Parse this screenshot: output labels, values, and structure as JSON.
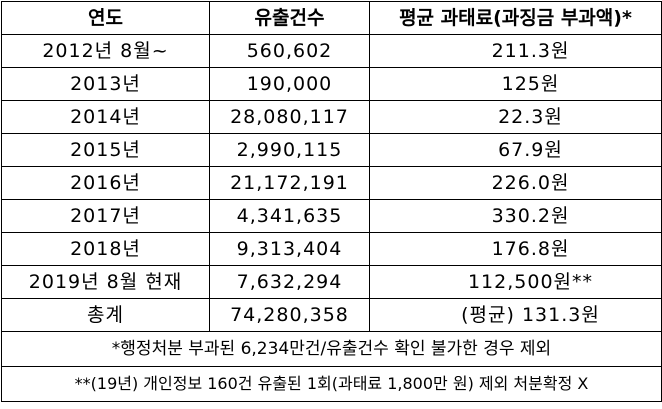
{
  "table": {
    "headers": [
      "연도",
      "유출건수",
      "평균 과태료(과징금 부과액)*"
    ],
    "rows": [
      {
        "year": "2012년 8월~",
        "leaks": "560,602",
        "avg_fine": "211.3원"
      },
      {
        "year": "2013년",
        "leaks": "190,000",
        "avg_fine": "125원"
      },
      {
        "year": "2014년",
        "leaks": "28,080,117",
        "avg_fine": "22.3원"
      },
      {
        "year": "2015년",
        "leaks": "2,990,115",
        "avg_fine": "67.9원"
      },
      {
        "year": "2016년",
        "leaks": "21,172,191",
        "avg_fine": "226.0원"
      },
      {
        "year": "2017년",
        "leaks": "4,341,635",
        "avg_fine": "330.2원"
      },
      {
        "year": "2018년",
        "leaks": "9,313,404",
        "avg_fine": "176.8원"
      },
      {
        "year": "2019년 8월 현재",
        "leaks": "7,632,294",
        "avg_fine": "112,500원**"
      }
    ],
    "total": {
      "label": "총계",
      "leaks": "74,280,358",
      "avg_fine": "(평균) 131.3원"
    },
    "notes": [
      "*행정처분 부과된 6,234만건/유출건수 확인 불가한 경우 제외",
      "**(19년) 개인정보 160건 유출된 1회(과태료 1,800만 원) 제외 처분확정 X"
    ]
  }
}
